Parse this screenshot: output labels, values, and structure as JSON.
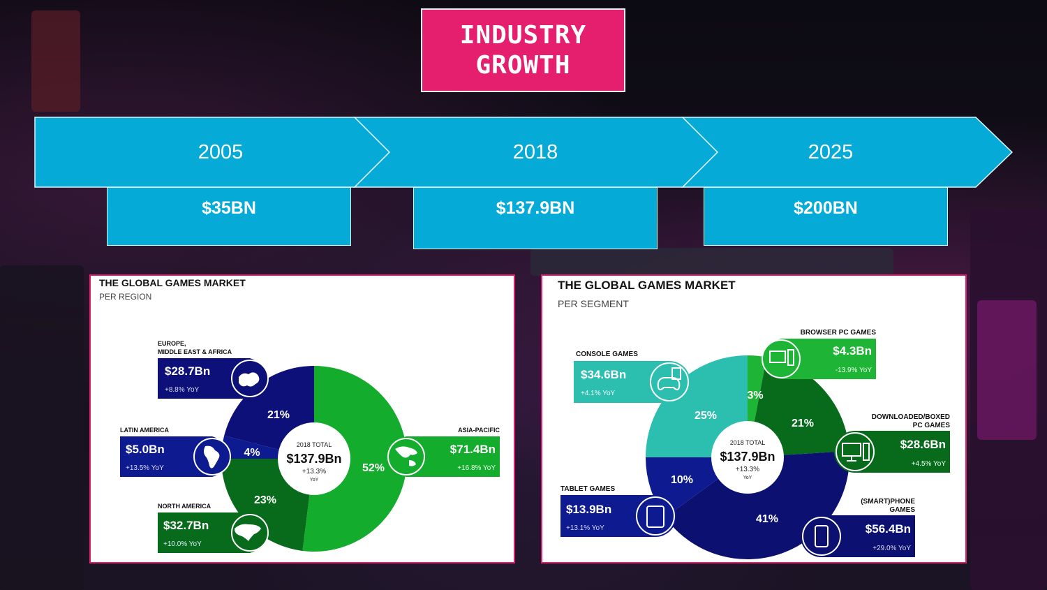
{
  "title": {
    "line1": "INDUSTRY",
    "line2": "GROWTH"
  },
  "timeline": [
    {
      "year": "2005",
      "value": "$35BN"
    },
    {
      "year": "2018",
      "value": "$137.9BN"
    },
    {
      "year": "2025",
      "value": "$200BN"
    }
  ],
  "colors": {
    "accent": "#e61e6e",
    "timeline": "#05abd6",
    "navy": "#0c1078",
    "dark_green": "#086b1c",
    "bright_green": "#14ac2c",
    "teal": "#2cbfb0",
    "blue": "#0d1a90"
  },
  "region_chart": {
    "title": "THE GLOBAL GAMES MARKET",
    "subtitle": "PER REGION",
    "center": {
      "label": "2018 TOTAL",
      "value": "$137.9Bn",
      "growth": "+13.3%",
      "yoy": "YoY"
    },
    "slices": [
      {
        "name": "ASIA-PACIFIC",
        "value": "$71.4Bn",
        "yoy": "+16.8% YoY",
        "pct": "52%",
        "share": 52,
        "color": "#14ac2c",
        "icon": "asia-map-icon"
      },
      {
        "name": "NORTH AMERICA",
        "value": "$32.7Bn",
        "yoy": "+10.0% YoY",
        "pct": "23%",
        "share": 23,
        "color": "#086b1c",
        "icon": "north-america-map-icon"
      },
      {
        "name": "LATIN AMERICA",
        "value": "$5.0Bn",
        "yoy": "+13.5% YoY",
        "pct": "4%",
        "share": 4,
        "color": "#0d1a90",
        "icon": "latin-america-map-icon"
      },
      {
        "name1": "EUROPE,",
        "name2": "MIDDLE EAST & AFRICA",
        "value": "$28.7Bn",
        "yoy": "+8.8% YoY",
        "pct": "21%",
        "share": 21,
        "color": "#0c1078",
        "icon": "europe-map-icon"
      }
    ]
  },
  "chart_data": [
    {
      "type": "pie",
      "title": "THE GLOBAL GAMES MARKET",
      "subtitle": "PER REGION",
      "categories": [
        "ASIA-PACIFIC",
        "NORTH AMERICA",
        "LATIN AMERICA",
        "EUROPE, MIDDLE EAST & AFRICA"
      ],
      "values": [
        71.4,
        32.7,
        5.0,
        28.7
      ],
      "percent": [
        52,
        23,
        4,
        21
      ],
      "yoy": [
        "+16.8%",
        "+10.0%",
        "+13.5%",
        "+8.8%"
      ],
      "total": 137.9
    },
    {
      "type": "pie",
      "title": "THE GLOBAL GAMES MARKET",
      "subtitle": "PER SEGMENT",
      "categories": [
        "BROWSER PC GAMES",
        "DOWNLOADED/BOXED PC GAMES",
        "(SMART)PHONE GAMES",
        "TABLET GAMES",
        "CONSOLE GAMES"
      ],
      "values": [
        4.3,
        28.6,
        56.4,
        13.9,
        34.6
      ],
      "percent": [
        3,
        21,
        41,
        10,
        25
      ],
      "yoy": [
        "-13.9%",
        "+4.5%",
        "+29.0%",
        "+13.1%",
        "+4.1%"
      ],
      "total": 137.9
    }
  ],
  "segment_chart": {
    "title": "THE GLOBAL GAMES MARKET",
    "subtitle": "PER SEGMENT",
    "center": {
      "label": "2018 TOTAL",
      "value": "$137.9Bn",
      "growth": "+13.3%",
      "yoy": "YoY"
    },
    "slices": [
      {
        "name": "BROWSER PC GAMES",
        "value": "$4.3Bn",
        "yoy": "-13.9% YoY",
        "pct": "3%",
        "share": 3,
        "color": "#1eb536",
        "icon": "desktop-pc-icon"
      },
      {
        "name1": "DOWNLOADED/BOXED",
        "name2": "PC GAMES",
        "value": "$28.6Bn",
        "yoy": "+4.5% YoY",
        "pct": "21%",
        "share": 21,
        "color": "#086b1c",
        "icon": "monitor-icon"
      },
      {
        "name1": "(SMART)PHONE",
        "name2": "GAMES",
        "value": "$56.4Bn",
        "yoy": "+29.0% YoY",
        "pct": "41%",
        "share": 41,
        "color": "#0c1070",
        "icon": "smartphone-icon"
      },
      {
        "name": "TABLET GAMES",
        "value": "$13.9Bn",
        "yoy": "+13.1% YoY",
        "pct": "10%",
        "share": 10,
        "color": "#0d1a90",
        "icon": "tablet-icon"
      },
      {
        "name": "CONSOLE GAMES",
        "value": "$34.6Bn",
        "yoy": "+4.1% YoY",
        "pct": "25%",
        "share": 25,
        "color": "#2cbfb0",
        "icon": "console-controller-icon"
      }
    ]
  }
}
